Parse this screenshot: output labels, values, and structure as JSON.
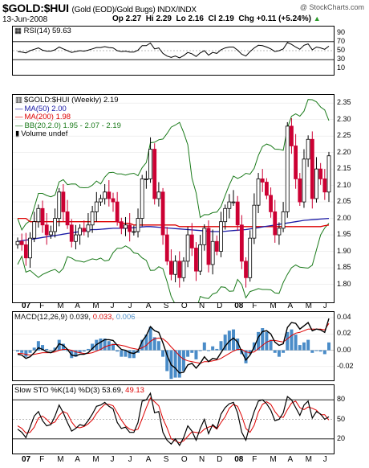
{
  "header": {
    "symbol": "$GOLD:$HUI",
    "description": "(Gold (EOD)/Gold Bugs) INDX/INDX",
    "brand": "@ StockCharts.com",
    "date": "13-Jun-2008",
    "open": "Op 2.27",
    "high": "Hi 2.29",
    "low": "Lo 2.16",
    "close": "Cl 2.19",
    "change": "Chg +0.11 (+5.24%)",
    "change_arrow": "▲"
  },
  "colors": {
    "up_candle": "#000000",
    "down_candle": "#cc0033",
    "ma50": "#1a1aa6",
    "ma200": "#dd0000",
    "bb": "#1a7a1a",
    "macd_line": "#000000",
    "signal_line": "#dd0000",
    "histogram": "#4a8cc8",
    "sto_k": "#000000",
    "sto_d": "#dd0000"
  },
  "rsi_panel": {
    "label": "RSI(14) 59.63",
    "ticks": [
      "90",
      "70",
      "50",
      "30",
      "10"
    ],
    "tick_values": [
      90,
      70,
      50,
      30,
      10
    ],
    "upper": 70,
    "lower": 30
  },
  "price_panel": {
    "legend": [
      {
        "text": "$GOLD:$HUI (Weekly) 2.19",
        "color": "#000000"
      },
      {
        "text": "MA(50) 2.00",
        "color": "#1a1aa6"
      },
      {
        "text": "MA(200) 1.98",
        "color": "#dd0000"
      },
      {
        "text": "BB(20,2.0) 1.95 - 2.07 - 2.19",
        "color": "#1a7a1a"
      },
      {
        "text": "Volume undef",
        "color": "#000000"
      }
    ],
    "ticks": [
      "2.35",
      "2.30",
      "2.25",
      "2.20",
      "2.15",
      "2.10",
      "2.05",
      "2.00",
      "1.95",
      "1.90",
      "1.85",
      "1.80"
    ],
    "tick_values": [
      2.35,
      2.3,
      2.25,
      2.2,
      2.15,
      2.1,
      2.05,
      2.0,
      1.95,
      1.9,
      1.85,
      1.8
    ]
  },
  "macd_panel": {
    "label": "MACD(12,26,9) 0.039, 0.033, 0.006",
    "label_parts": [
      "MACD(12,26,9) 0.039, ",
      "0.033, ",
      "0.006"
    ],
    "ticks": [
      "0.04",
      "0.02",
      "0.00",
      "-0.02"
    ],
    "tick_values": [
      0.04,
      0.02,
      0.0,
      -0.02
    ]
  },
  "sto_panel": {
    "label": "Slow STO %K(14) %D(3) 53.69, 49.13",
    "label_parts": [
      "Slow STO %K(14) %D(3) 53.69, ",
      "49.13"
    ],
    "ticks": [
      "80",
      "50",
      "20"
    ],
    "tick_values": [
      80,
      50,
      20
    ]
  },
  "x_axis": {
    "labels": [
      "07",
      "F",
      "M",
      "A",
      "M",
      "J",
      "J",
      "A",
      "S",
      "O",
      "N",
      "D",
      "08",
      "F",
      "M",
      "A",
      "M",
      "J"
    ],
    "bold": [
      true,
      false,
      false,
      false,
      false,
      false,
      false,
      false,
      false,
      false,
      false,
      false,
      true,
      false,
      false,
      false,
      false,
      false
    ]
  },
  "chart_data": {
    "type": "candlestick",
    "period": "weekly",
    "range": "Jan 2007 - Jun 2008",
    "ylim": [
      1.75,
      2.37
    ],
    "weeks": 76,
    "price_close": [
      1.93,
      1.92,
      1.88,
      1.94,
      1.99,
      2.03,
      1.98,
      1.95,
      1.96,
      2.0,
      2.08,
      2.02,
      1.98,
      1.93,
      1.95,
      1.97,
      1.96,
      1.98,
      2.02,
      2.05,
      2.06,
      2.08,
      2.06,
      2.05,
      1.99,
      1.97,
      1.98,
      1.96,
      1.96,
      2.0,
      2.12,
      2.12,
      2.21,
      2.06,
      2.08,
      1.95,
      1.87,
      1.83,
      1.87,
      1.82,
      1.87,
      1.95,
      1.91,
      1.84,
      1.92,
      1.97,
      1.86,
      1.93,
      1.9,
      1.99,
      2.03,
      2.05,
      2.05,
      1.98,
      1.87,
      1.82,
      1.94,
      2.04,
      2.12,
      2.11,
      2.07,
      2.02,
      1.95,
      1.97,
      2.02,
      2.28,
      2.22,
      2.12,
      2.05,
      2.18,
      2.24,
      2.06,
      2.15,
      2.12,
      2.08,
      2.19
    ],
    "ma50": [
      1.93,
      1.932,
      1.934,
      1.936,
      1.938,
      1.94,
      1.942,
      1.944,
      1.946,
      1.948,
      1.95,
      1.952,
      1.954,
      1.956,
      1.958,
      1.96,
      1.962,
      1.964,
      1.966,
      1.966,
      1.967,
      1.968,
      1.969,
      1.97,
      1.97,
      1.97,
      1.97,
      1.971,
      1.972,
      1.973,
      1.974,
      1.975,
      1.975,
      1.974,
      1.973,
      1.972,
      1.971,
      1.97,
      1.969,
      1.968,
      1.967,
      1.966,
      1.965,
      1.964,
      1.963,
      1.962,
      1.961,
      1.96,
      1.96,
      1.96,
      1.961,
      1.962,
      1.963,
      1.964,
      1.965,
      1.966,
      1.968,
      1.97,
      1.972,
      1.974,
      1.976,
      1.978,
      1.98,
      1.982,
      1.984,
      1.986,
      1.988,
      1.99,
      1.992,
      1.994,
      1.995,
      1.996,
      1.997,
      1.998,
      1.999,
      2.0
    ],
    "ma200": [
      2.0,
      2.0,
      2.0,
      1.99,
      1.99,
      1.99,
      1.99,
      1.99,
      1.99,
      1.99,
      1.99,
      1.99,
      1.99,
      1.99,
      1.99,
      1.99,
      1.99,
      1.99,
      1.99,
      1.99,
      1.99,
      1.99,
      1.99,
      1.99,
      1.99,
      1.985,
      1.985,
      1.985,
      1.98,
      1.98,
      1.98,
      1.98,
      1.98,
      1.98,
      1.98,
      1.98,
      1.98,
      1.98,
      1.98,
      1.975,
      1.975,
      1.975,
      1.975,
      1.975,
      1.975,
      1.975,
      1.975,
      1.975,
      1.975,
      1.975,
      1.975,
      1.975,
      1.975,
      1.975,
      1.975,
      1.975,
      1.975,
      1.975,
      1.975,
      1.975,
      1.975,
      1.975,
      1.975,
      1.975,
      1.975,
      1.975,
      1.975,
      1.975,
      1.975,
      1.975,
      1.975,
      1.975,
      1.975,
      1.975,
      1.978,
      1.98
    ],
    "rsi": [
      48,
      47,
      45,
      50,
      53,
      56,
      51,
      49,
      49,
      52,
      58,
      54,
      50,
      46,
      48,
      50,
      49,
      51,
      54,
      57,
      57,
      59,
      57,
      56,
      50,
      48,
      49,
      47,
      47,
      51,
      61,
      61,
      67,
      54,
      56,
      44,
      38,
      35,
      38,
      34,
      39,
      46,
      43,
      37,
      45,
      50,
      40,
      46,
      44,
      52,
      56,
      58,
      58,
      51,
      42,
      38,
      48,
      56,
      62,
      61,
      58,
      54,
      48,
      50,
      54,
      68,
      64,
      58,
      53,
      62,
      65,
      52,
      58,
      56,
      53,
      60
    ],
    "macd": [
      -0.005,
      -0.006,
      -0.01,
      -0.008,
      -0.003,
      0.003,
      0.001,
      -0.002,
      -0.003,
      0.0,
      0.008,
      0.006,
      0.001,
      -0.006,
      -0.007,
      -0.005,
      -0.005,
      -0.003,
      0.002,
      0.007,
      0.01,
      0.013,
      0.013,
      0.012,
      0.006,
      0.001,
      0.0,
      -0.003,
      -0.004,
      -0.001,
      0.011,
      0.018,
      0.029,
      0.024,
      0.022,
      0.009,
      -0.006,
      -0.018,
      -0.022,
      -0.028,
      -0.027,
      -0.018,
      -0.016,
      -0.022,
      -0.016,
      -0.008,
      -0.014,
      -0.01,
      -0.011,
      -0.003,
      0.005,
      0.011,
      0.015,
      0.01,
      -0.002,
      -0.012,
      -0.006,
      0.004,
      0.016,
      0.023,
      0.024,
      0.02,
      0.01,
      0.006,
      0.008,
      0.028,
      0.034,
      0.033,
      0.026,
      0.03,
      0.034,
      0.024,
      0.026,
      0.025,
      0.022,
      0.039
    ],
    "macd_signal": [
      -0.004,
      -0.004,
      -0.005,
      -0.006,
      -0.005,
      -0.004,
      -0.003,
      -0.003,
      -0.003,
      -0.002,
      0.0,
      0.001,
      0.001,
      0.0,
      -0.002,
      -0.003,
      -0.004,
      -0.004,
      -0.003,
      -0.001,
      0.001,
      0.004,
      0.006,
      0.007,
      0.007,
      0.006,
      0.005,
      0.003,
      0.002,
      0.001,
      0.003,
      0.006,
      0.011,
      0.014,
      0.015,
      0.014,
      0.01,
      0.004,
      -0.001,
      -0.007,
      -0.011,
      -0.013,
      -0.014,
      -0.015,
      -0.016,
      -0.014,
      -0.014,
      -0.013,
      -0.012,
      -0.01,
      -0.007,
      -0.004,
      -0.001,
      0.001,
      0.001,
      -0.002,
      -0.003,
      -0.002,
      0.002,
      0.006,
      0.01,
      0.012,
      0.012,
      0.011,
      0.01,
      0.014,
      0.018,
      0.021,
      0.022,
      0.024,
      0.026,
      0.026,
      0.026,
      0.026,
      0.025,
      0.033
    ],
    "sto_k": [
      35,
      30,
      22,
      38,
      55,
      62,
      48,
      40,
      42,
      55,
      72,
      60,
      45,
      32,
      36,
      42,
      40,
      48,
      58,
      70,
      72,
      76,
      70,
      66,
      45,
      36,
      38,
      30,
      30,
      45,
      78,
      80,
      90,
      60,
      62,
      30,
      18,
      12,
      20,
      10,
      22,
      40,
      32,
      18,
      36,
      50,
      28,
      42,
      36,
      58,
      68,
      74,
      76,
      60,
      30,
      18,
      42,
      62,
      78,
      80,
      74,
      64,
      48,
      50,
      60,
      85,
      80,
      68,
      56,
      72,
      78,
      52,
      62,
      58,
      50,
      54
    ],
    "sto_d": [
      40,
      36,
      29,
      30,
      38,
      52,
      55,
      50,
      43,
      46,
      56,
      62,
      59,
      46,
      38,
      37,
      39,
      43,
      49,
      59,
      67,
      73,
      73,
      71,
      60,
      49,
      40,
      35,
      33,
      35,
      51,
      68,
      83,
      77,
      71,
      51,
      37,
      20,
      17,
      14,
      17,
      24,
      31,
      30,
      29,
      35,
      38,
      40,
      35,
      45,
      54,
      67,
      73,
      70,
      55,
      36,
      30,
      41,
      61,
      73,
      77,
      73,
      62,
      54,
      53,
      65,
      75,
      78,
      68,
      65,
      69,
      67,
      64,
      57,
      57,
      49
    ]
  }
}
